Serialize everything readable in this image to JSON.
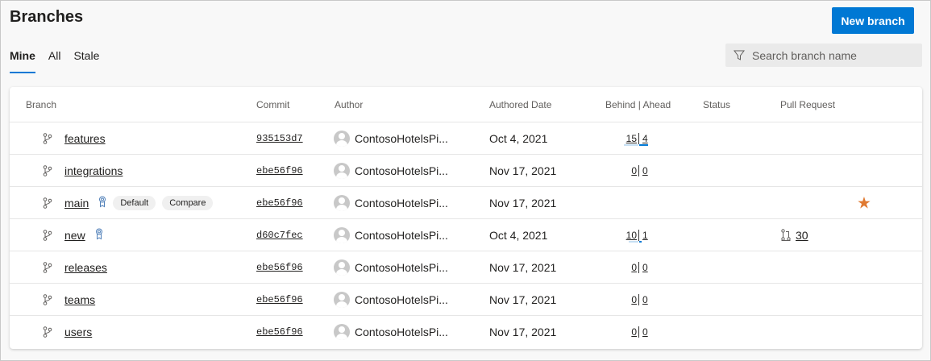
{
  "header": {
    "title": "Branches",
    "new_branch_label": "New branch"
  },
  "tabs": [
    {
      "label": "Mine",
      "active": true
    },
    {
      "label": "All"
    },
    {
      "label": "Stale"
    }
  ],
  "search": {
    "placeholder": "Search branch name"
  },
  "columns": [
    "Branch",
    "Commit",
    "Author",
    "Authored Date",
    "Behind | Ahead",
    "Status",
    "Pull Request"
  ],
  "colors": {
    "accent": "#0078d4",
    "star": "#e07a32"
  },
  "rows": [
    {
      "name": "features",
      "commit": "935153d7",
      "author": "ContosoHotelsPi...",
      "date": "Oct 4, 2021",
      "behind": "15",
      "ahead": "4"
    },
    {
      "name": "integrations",
      "commit": "ebe56f96",
      "author": "ContosoHotelsPi...",
      "date": "Nov 17, 2021",
      "behind": "0",
      "ahead": "0"
    },
    {
      "name": "main",
      "commit": "ebe56f96",
      "author": "ContosoHotelsPi...",
      "date": "Nov 17, 2021",
      "badge": true,
      "default_label": "Default",
      "compare_label": "Compare",
      "favorite": true
    },
    {
      "name": "new",
      "commit": "d60c7fec",
      "author": "ContosoHotelsPi...",
      "date": "Oct 4, 2021",
      "behind": "10",
      "ahead": "1",
      "badge": true,
      "pr": "30"
    },
    {
      "name": "releases",
      "commit": "ebe56f96",
      "author": "ContosoHotelsPi...",
      "date": "Nov 17, 2021",
      "behind": "0",
      "ahead": "0"
    },
    {
      "name": "teams",
      "commit": "ebe56f96",
      "author": "ContosoHotelsPi...",
      "date": "Nov 17, 2021",
      "behind": "0",
      "ahead": "0"
    },
    {
      "name": "users",
      "commit": "ebe56f96",
      "author": "ContosoHotelsPi...",
      "date": "Nov 17, 2021",
      "behind": "0",
      "ahead": "0"
    }
  ]
}
